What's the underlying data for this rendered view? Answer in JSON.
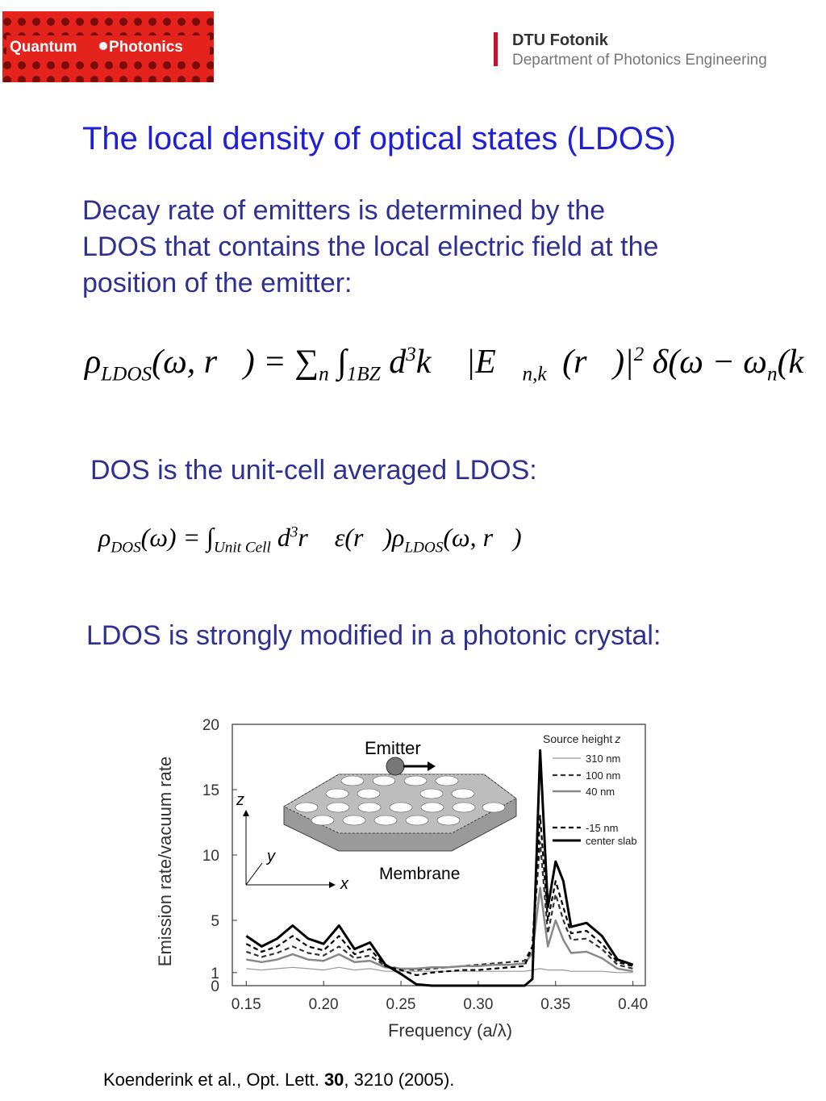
{
  "header": {
    "logo_left": [
      "Quantum",
      "Photonics"
    ],
    "org_name": "DTU Fotonik",
    "org_department": "Department of Photonics Engineering"
  },
  "title": "The local density of optical states (LDOS)",
  "paragraph": [
    "Decay rate of emitters is determined by the",
    "LDOS that contains the local electric field at the",
    "position of the emitter:"
  ],
  "equation1": [
    {
      "t": "ρ",
      "sub": "LDOS"
    },
    {
      "t": "(ω, r⃗) = "
    },
    {
      "t": "∑",
      "sub": "n"
    },
    {
      "t": " ∫",
      "sub": "1BZ"
    },
    {
      "t": " d",
      "sup": "3"
    },
    {
      "t": "k⃗ |E⃗",
      "sub": "n,k⃗"
    },
    {
      "t": "(r⃗)|",
      "sup": "2"
    },
    {
      "t": " δ(ω − ω",
      "sub": "n"
    },
    {
      "t": "(k⃗))"
    }
  ],
  "dos_text": "DOS is the unit-cell averaged LDOS:",
  "equation2": [
    {
      "t": "ρ",
      "sub": "DOS"
    },
    {
      "t": "(ω) = "
    },
    {
      "t": "∫",
      "sub": "Unit Cell"
    },
    {
      "t": " d",
      "sup": "3"
    },
    {
      "t": "r⃗ ε(r⃗)ρ",
      "sub": "LDOS"
    },
    {
      "t": "(ω, r⃗)"
    }
  ],
  "ldos_text": "LDOS is strongly modified in a photonic crystal:",
  "figure": {
    "type": "line",
    "xlabel": "Frequency (a/λ)",
    "ylabel": "Emission rate/vacuum rate",
    "xlim": [
      0.141,
      0.408
    ],
    "ylim": [
      0,
      20
    ],
    "xticks": [
      0.15,
      {
        "value": 0.2,
        "label": "0.20"
      },
      0.25,
      {
        "value": 0.3,
        "label": "0.30"
      },
      0.35,
      {
        "value": 0.4,
        "label": "0.40"
      }
    ],
    "yticks": [
      0,
      1,
      5,
      10,
      15,
      20
    ],
    "legend_title": {
      "text": "Source height",
      "var": "z"
    },
    "x": [
      0.15,
      0.16,
      0.17,
      0.18,
      0.19,
      0.2,
      0.21,
      0.22,
      0.23,
      0.24,
      0.25,
      0.26,
      0.27,
      0.28,
      0.29,
      0.3,
      0.31,
      0.32,
      0.33,
      0.335,
      0.34,
      0.345,
      0.35,
      0.355,
      0.36,
      0.37,
      0.38,
      0.39,
      0.4
    ],
    "series": [
      {
        "name": "310 nm",
        "color": "#999999",
        "dash": false,
        "values": [
          1.3,
          1.2,
          1.3,
          1.4,
          1.3,
          1.2,
          1.4,
          1.2,
          1.3,
          1.1,
          1.1,
          1.1,
          1.1,
          1.1,
          1.1,
          1.1,
          1.1,
          1.1,
          1.1,
          1.2,
          1.3,
          1.2,
          1.2,
          1.2,
          1.1,
          1.1,
          1.1,
          1.0,
          1.0
        ]
      },
      {
        "name": "100 nm",
        "color": "#333333",
        "dash": true,
        "values": [
          2.6,
          2.2,
          2.5,
          3.0,
          2.5,
          2.3,
          3.0,
          2.1,
          2.3,
          1.5,
          1.3,
          1.2,
          1.3,
          1.4,
          1.5,
          1.6,
          1.7,
          1.8,
          1.9,
          3,
          11,
          4,
          7,
          5,
          3.5,
          3.6,
          2.8,
          1.6,
          1.3
        ]
      },
      {
        "name": "40 nm",
        "color": "#888888",
        "dash": false,
        "values": [
          2.0,
          1.8,
          2.0,
          2.4,
          2.0,
          1.9,
          2.4,
          1.8,
          1.9,
          1.4,
          1.3,
          1.3,
          1.4,
          1.4,
          1.5,
          1.5,
          1.6,
          1.6,
          1.7,
          2.5,
          7.5,
          3,
          5,
          3.5,
          2.5,
          2.6,
          2.1,
          1.3,
          1.1
        ]
      },
      {
        "name": "-15 nm",
        "color": "#000000",
        "dash": true,
        "values": [
          3.2,
          2.6,
          3.0,
          3.8,
          3.0,
          2.7,
          3.8,
          2.4,
          2.8,
          1.5,
          1.2,
          0.8,
          1.0,
          1.1,
          1.2,
          1.2,
          1.3,
          1.4,
          1.5,
          3,
          13,
          5,
          8,
          6,
          4,
          4.2,
          3.2,
          1.8,
          1.5
        ]
      },
      {
        "name": "center slab",
        "color": "#000000",
        "dash": false,
        "values": [
          3.8,
          3.0,
          3.6,
          4.6,
          3.6,
          3.2,
          4.6,
          2.8,
          3.3,
          1.6,
          0.9,
          0.1,
          0,
          0,
          0,
          0,
          0,
          0,
          0,
          0.5,
          18,
          6,
          9.5,
          8,
          4.5,
          4.8,
          3.8,
          2.0,
          1.6
        ]
      }
    ],
    "inset": {
      "emitter": "Emitter",
      "membrane": "Membrane",
      "z": "z",
      "y": "y",
      "x": "x"
    }
  },
  "citation": {
    "before": "Koenderink et al., Opt. Lett. ",
    "volume": "30",
    "after": ", 3210 (2005)."
  }
}
